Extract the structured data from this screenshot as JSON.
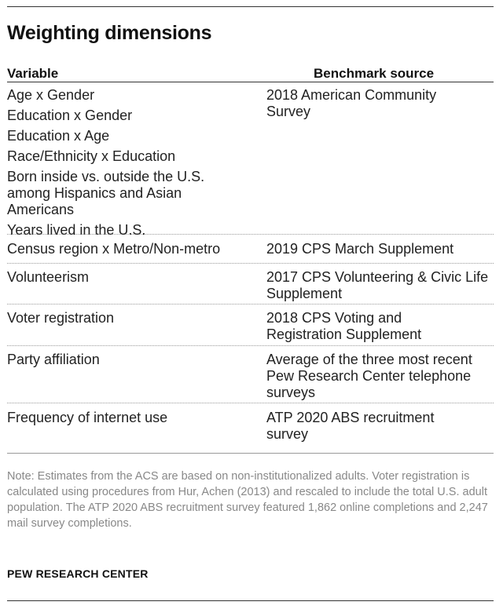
{
  "title": "Weighting dimensions",
  "headers": {
    "variable": "Variable",
    "source": "Benchmark source"
  },
  "rows": [
    {
      "variables": [
        "Age x Gender",
        "Education x Gender",
        "Education x Age",
        "Race/Ethnicity x Education",
        "Born inside vs. outside the U.S. among Hispanics and Asian Americans",
        "Years lived in the U.S."
      ],
      "source": "2018 American Community Survey"
    },
    {
      "variables": [
        "Census region x Metro/Non-metro"
      ],
      "source": "2019 CPS March Supplement"
    },
    {
      "variables": [
        "Volunteerism"
      ],
      "source": "2017 CPS Volunteering & Civic Life Supplement"
    },
    {
      "variables": [
        "Voter registration"
      ],
      "source": "2018 CPS Voting and Registration Supplement"
    },
    {
      "variables": [
        "Party affiliation"
      ],
      "source": "Average of the three most recent Pew Research Center telephone surveys"
    },
    {
      "variables": [
        "Frequency of internet use"
      ],
      "source": "ATP 2020 ABS recruitment survey"
    }
  ],
  "note": "Note: Estimates from the ACS are based on non-institutionalized adults. Voter registration is calculated using procedures from Hur, Achen (2013) and rescaled to include the total U.S. adult population. The ATP 2020 ABS recruitment survey featured 1,862 online completions and 2,247 mail survey completions.",
  "credit": "PEW RESEARCH CENTER"
}
